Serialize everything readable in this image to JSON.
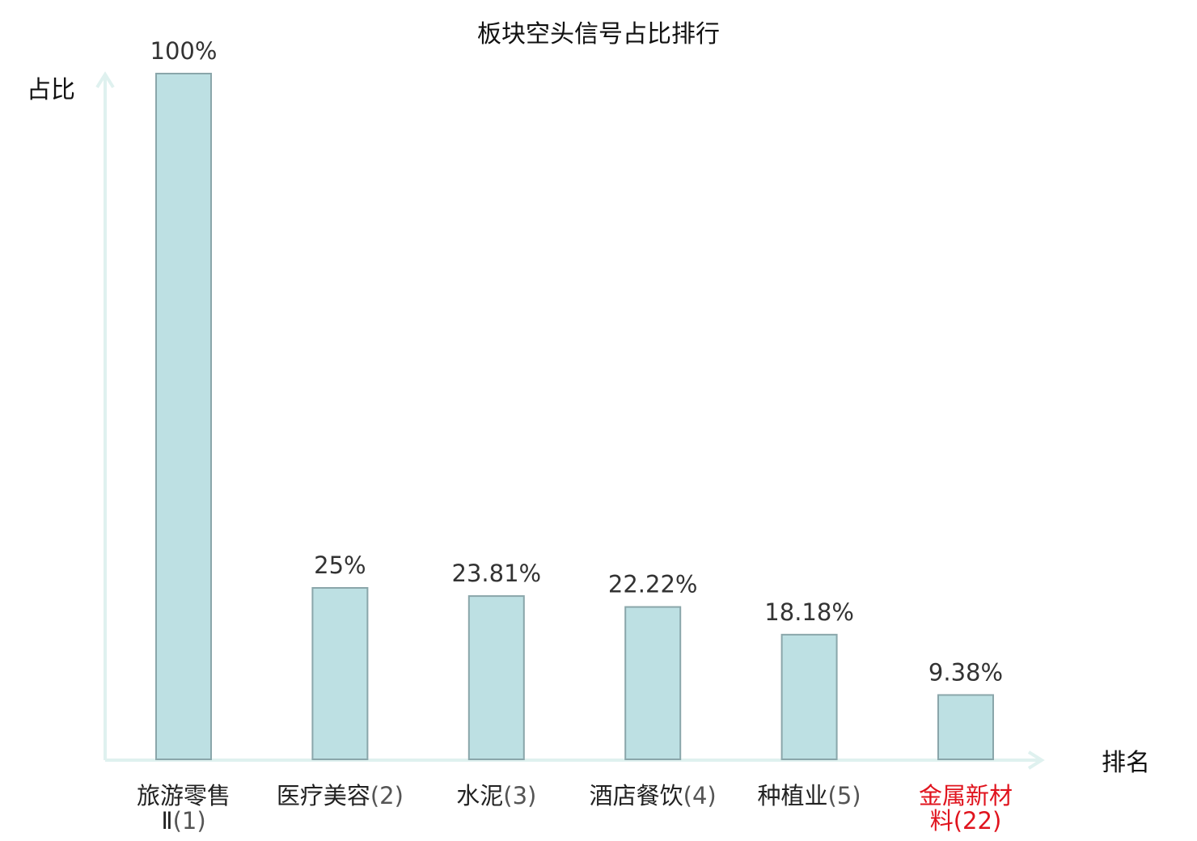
{
  "chart_data": {
    "type": "bar",
    "title": "板块空头信号占比排行",
    "ylabel": "占比",
    "xlabel": "排名",
    "ylim": [
      0,
      100
    ],
    "grid": false,
    "categories": [
      {
        "line1": "旅游零售",
        "line2": "Ⅱ",
        "rank": "(1)",
        "value_label": "100%",
        "highlight": false
      },
      {
        "line1": "医疗美容",
        "line2": "",
        "rank": "(2)",
        "value_label": "25%",
        "highlight": false
      },
      {
        "line1": "水泥",
        "line2": "",
        "rank": "(3)",
        "value_label": "23.81%",
        "highlight": false
      },
      {
        "line1": "酒店餐饮",
        "line2": "",
        "rank": "(4)",
        "value_label": "22.22%",
        "highlight": false
      },
      {
        "line1": "种植业",
        "line2": "",
        "rank": "(5)",
        "value_label": "18.18%",
        "highlight": false
      },
      {
        "line1": "金属新材",
        "line2": "料",
        "rank": "(22)",
        "value_label": "9.38%",
        "highlight": true
      }
    ],
    "values": [
      100,
      25,
      23.81,
      22.22,
      18.18,
      9.38
    ],
    "colors": {
      "bar_fill": "#bde0e3",
      "bar_stroke": "#8aa6aa",
      "axis": "#dff1ef",
      "highlight": "#e0141e"
    }
  }
}
